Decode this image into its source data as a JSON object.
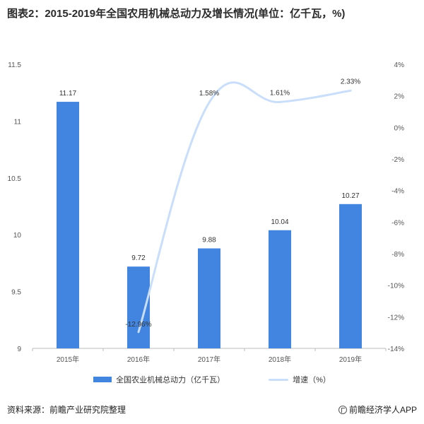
{
  "title": "图表2：2015-2019年全国农用机械总动力及增长情况(单位：亿千瓦，%)",
  "chart_data": {
    "type": "bar",
    "categories": [
      "2015年",
      "2016年",
      "2017年",
      "2018年",
      "2019年"
    ],
    "series": [
      {
        "name": "全国农业机械总动力（亿千瓦）",
        "type": "bar",
        "axis": "left",
        "values": [
          11.17,
          9.72,
          9.88,
          10.04,
          10.27
        ],
        "labels": [
          "11.17",
          "9.72",
          "9.88",
          "10.04",
          "10.27"
        ],
        "color": "#4285e0"
      },
      {
        "name": "增速（%）",
        "type": "line",
        "axis": "right",
        "values": [
          null,
          -12.96,
          1.58,
          1.61,
          2.33
        ],
        "labels": [
          "",
          "-12.96%",
          "1.58%",
          "1.61%",
          "2.33%"
        ],
        "color": "#c9defa"
      }
    ],
    "y_left": {
      "min": 9,
      "max": 11.5,
      "ticks": [
        9,
        9.5,
        10,
        10.5,
        11,
        11.5
      ],
      "tick_labels": [
        "9",
        "9.5",
        "10",
        "10.5",
        "11",
        "11.5"
      ]
    },
    "y_right": {
      "min": -14,
      "max": 4,
      "ticks": [
        -14,
        -12,
        -10,
        -8,
        -6,
        -4,
        -2,
        0,
        2,
        4
      ],
      "tick_labels": [
        "-14%",
        "-12%",
        "-10%",
        "-8%",
        "-6%",
        "-4%",
        "-2%",
        "0%",
        "2%",
        "4%"
      ]
    },
    "grid": false,
    "legend": "bottom"
  },
  "legend": {
    "bar_label": "全国农业机械总动力（亿千瓦）",
    "line_label": "增速（%）"
  },
  "footer": {
    "source": "资料来源：前瞻产业研究院整理",
    "brand": "前瞻经济学人APP"
  }
}
